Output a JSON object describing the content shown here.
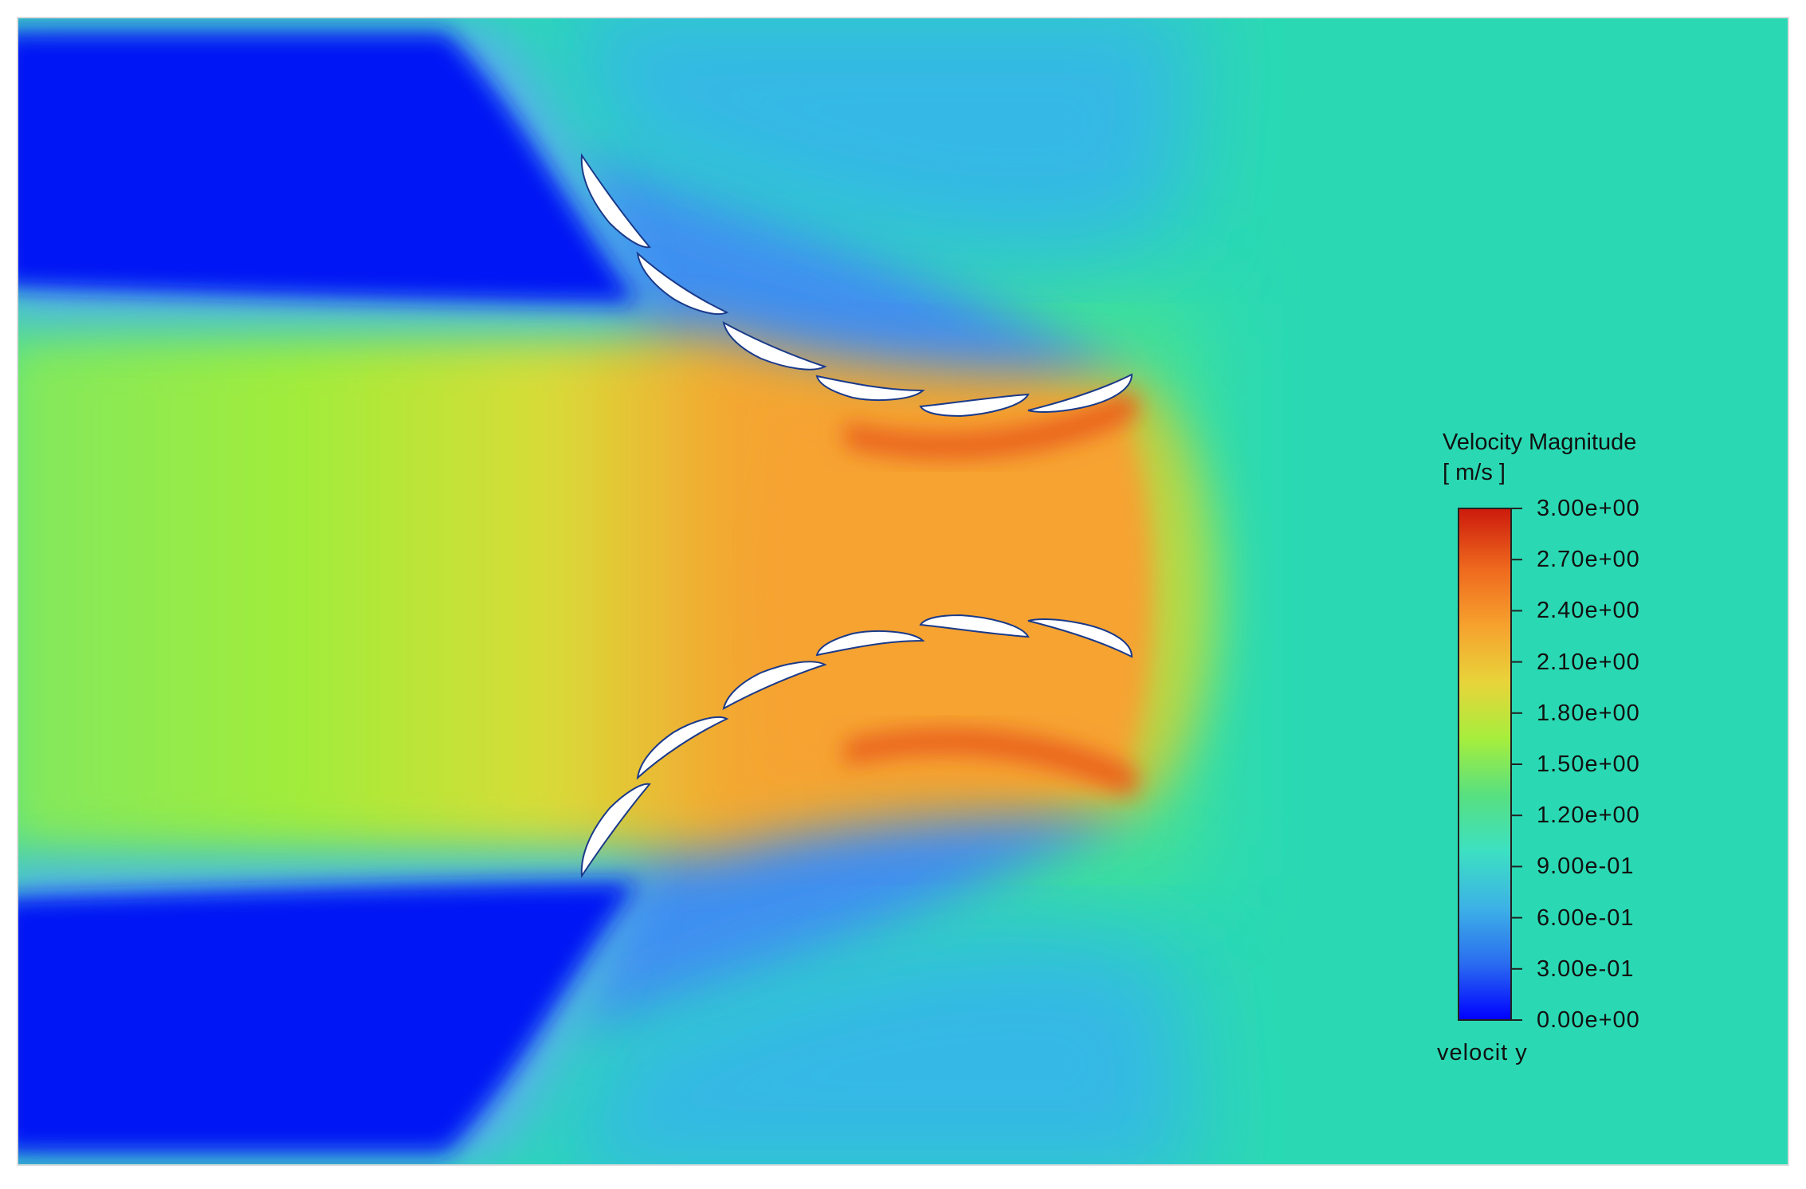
{
  "legend": {
    "title": "Velocity Magnitude",
    "unit": "[ m/s ]",
    "variable": "velocit y",
    "tick_labels": [
      "3.00e+00",
      "2.70e+00",
      "2.40e+00",
      "2.10e+00",
      "1.80e+00",
      "1.50e+00",
      "1.20e+00",
      "9.00e-01",
      "6.00e-01",
      "3.00e-01",
      "0.00e+00"
    ],
    "colormap": [
      "#0000ff",
      "#2a6cf0",
      "#3db2e6",
      "#3ce0c2",
      "#58e080",
      "#a6ee3c",
      "#e8d43a",
      "#f6a22e",
      "#ef6a1e",
      "#cc1a0c"
    ]
  },
  "field": {
    "free_stream_color": "#2adab0",
    "wake_color": "#0012f4",
    "jet_color": "#f6a333",
    "airfoil_color": "#ffffff"
  }
}
